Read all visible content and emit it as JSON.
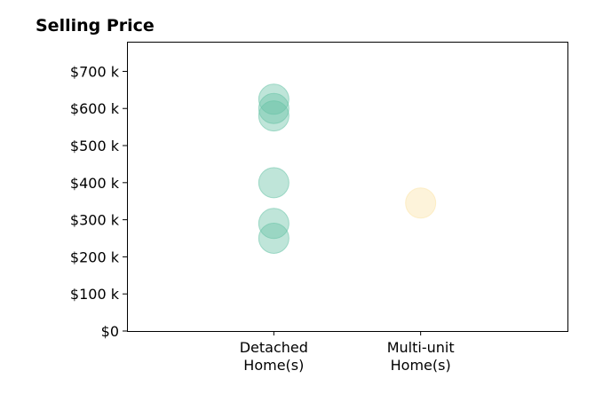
{
  "chart_data": {
    "type": "scatter",
    "title": "Selling Price",
    "xlabel": "",
    "ylabel": "",
    "categories": [
      [
        "Detached",
        "Home(s)"
      ],
      [
        "Multi-unit",
        "Home(s)"
      ]
    ],
    "xlim": [
      -1,
      2
    ],
    "y_ticks": [
      0,
      100,
      200,
      300,
      400,
      500,
      600,
      700
    ],
    "y_tick_labels": [
      "$0",
      "$100 k",
      "$200 k",
      "$300 k",
      "$400 k",
      "$500 k",
      "$600 k",
      "$700 k"
    ],
    "ylim": [
      0,
      780
    ],
    "grid": false,
    "legend": "none",
    "unit": "$ thousands",
    "series": [
      {
        "category_index": 0,
        "color": "#66c2a5",
        "values": [
          625,
          600,
          580,
          400,
          290,
          250
        ]
      },
      {
        "category_index": 1,
        "color": "#fbe3a6",
        "values": [
          345
        ]
      }
    ]
  }
}
